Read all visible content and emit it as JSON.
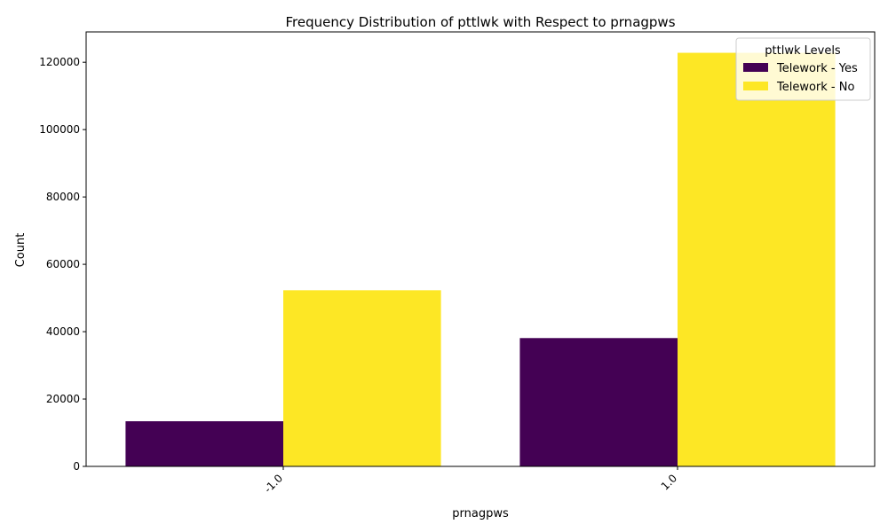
{
  "chart_data": {
    "type": "bar",
    "title": "Frequency Distribution of pttlwk with Respect to prnagpws",
    "xlabel": "prnagpws",
    "ylabel": "Count",
    "categories": [
      "-1.0",
      "1.0"
    ],
    "series": [
      {
        "name": "Telework - Yes",
        "values": [
          13400,
          38100
        ],
        "color": "#440154"
      },
      {
        "name": "Telework - No",
        "values": [
          52300,
          122800
        ],
        "color": "#fde725"
      }
    ],
    "ylim": [
      0,
      129000
    ],
    "yticks": [
      0,
      20000,
      40000,
      60000,
      80000,
      100000,
      120000
    ],
    "legend": {
      "title": "pttlwk Levels",
      "position": "top-right"
    },
    "grid": false,
    "xtick_rotation": 45
  }
}
